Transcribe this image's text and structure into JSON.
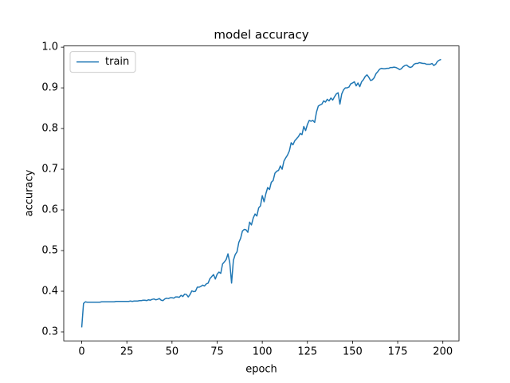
{
  "chart_data": {
    "type": "line",
    "title": "model accuracy",
    "x_label": "epoch",
    "y_label": "accuracy",
    "x": [
      0,
      1,
      2,
      3,
      4,
      5,
      6,
      7,
      8,
      9,
      10,
      11,
      12,
      13,
      14,
      15,
      16,
      17,
      18,
      19,
      20,
      21,
      22,
      23,
      24,
      25,
      26,
      27,
      28,
      29,
      30,
      31,
      32,
      33,
      34,
      35,
      36,
      37,
      38,
      39,
      40,
      41,
      42,
      43,
      44,
      45,
      46,
      47,
      48,
      49,
      50,
      51,
      52,
      53,
      54,
      55,
      56,
      57,
      58,
      59,
      60,
      61,
      62,
      63,
      64,
      65,
      66,
      67,
      68,
      69,
      70,
      71,
      72,
      73,
      74,
      75,
      76,
      77,
      78,
      79,
      80,
      81,
      82,
      83,
      84,
      85,
      86,
      87,
      88,
      89,
      90,
      91,
      92,
      93,
      94,
      95,
      96,
      97,
      98,
      99,
      100,
      101,
      102,
      103,
      104,
      105,
      106,
      107,
      108,
      109,
      110,
      111,
      112,
      113,
      114,
      115,
      116,
      117,
      118,
      119,
      120,
      121,
      122,
      123,
      124,
      125,
      126,
      127,
      128,
      129,
      130,
      131,
      132,
      133,
      134,
      135,
      136,
      137,
      138,
      139,
      140,
      141,
      142,
      143,
      144,
      145,
      146,
      147,
      148,
      149,
      150,
      151,
      152,
      153,
      154,
      155,
      156,
      157,
      158,
      159,
      160,
      161,
      162,
      163,
      164,
      165,
      166,
      167,
      168,
      169,
      170,
      171,
      172,
      173,
      174,
      175,
      176,
      177,
      178,
      179,
      180,
      181,
      182,
      183,
      184,
      185,
      186,
      187,
      188,
      189,
      190,
      191,
      192,
      193,
      194,
      195,
      196,
      197,
      198,
      199
    ],
    "series": [
      {
        "name": "train",
        "color": "#1f77b4",
        "values": [
          0.311,
          0.37,
          0.374,
          0.373,
          0.373,
          0.373,
          0.373,
          0.373,
          0.373,
          0.373,
          0.373,
          0.374,
          0.374,
          0.374,
          0.374,
          0.374,
          0.374,
          0.374,
          0.374,
          0.375,
          0.375,
          0.375,
          0.375,
          0.375,
          0.375,
          0.375,
          0.375,
          0.376,
          0.375,
          0.376,
          0.376,
          0.376,
          0.377,
          0.377,
          0.378,
          0.378,
          0.377,
          0.379,
          0.378,
          0.38,
          0.381,
          0.379,
          0.38,
          0.382,
          0.378,
          0.377,
          0.381,
          0.383,
          0.382,
          0.384,
          0.384,
          0.383,
          0.386,
          0.386,
          0.385,
          0.39,
          0.387,
          0.393,
          0.392,
          0.386,
          0.392,
          0.401,
          0.399,
          0.4,
          0.41,
          0.41,
          0.412,
          0.415,
          0.413,
          0.418,
          0.42,
          0.431,
          0.436,
          0.441,
          0.43,
          0.442,
          0.447,
          0.444,
          0.467,
          0.472,
          0.478,
          0.492,
          0.47,
          0.42,
          0.476,
          0.49,
          0.497,
          0.52,
          0.53,
          0.548,
          0.552,
          0.551,
          0.545,
          0.57,
          0.563,
          0.58,
          0.59,
          0.585,
          0.605,
          0.61,
          0.635,
          0.62,
          0.64,
          0.655,
          0.65,
          0.668,
          0.672,
          0.69,
          0.695,
          0.697,
          0.708,
          0.7,
          0.72,
          0.728,
          0.735,
          0.745,
          0.765,
          0.76,
          0.77,
          0.775,
          0.78,
          0.788,
          0.785,
          0.805,
          0.795,
          0.81,
          0.82,
          0.818,
          0.82,
          0.815,
          0.84,
          0.855,
          0.858,
          0.86,
          0.868,
          0.865,
          0.872,
          0.868,
          0.875,
          0.87,
          0.878,
          0.885,
          0.888,
          0.86,
          0.885,
          0.895,
          0.9,
          0.9,
          0.902,
          0.91,
          0.912,
          0.915,
          0.905,
          0.912,
          0.903,
          0.915,
          0.92,
          0.928,
          0.932,
          0.926,
          0.918,
          0.92,
          0.925,
          0.935,
          0.94,
          0.946,
          0.948,
          0.947,
          0.947,
          0.948,
          0.948,
          0.95,
          0.95,
          0.951,
          0.95,
          0.948,
          0.945,
          0.947,
          0.952,
          0.955,
          0.956,
          0.952,
          0.95,
          0.952,
          0.958,
          0.96,
          0.96,
          0.962,
          0.961,
          0.96,
          0.96,
          0.958,
          0.958,
          0.958,
          0.96,
          0.955,
          0.958,
          0.965,
          0.968,
          0.97
        ]
      }
    ],
    "xlim": [
      -9.95,
      208.95
    ],
    "ylim": [
      0.278,
      1.003
    ],
    "xticks": [
      0,
      25,
      50,
      75,
      100,
      125,
      150,
      175,
      200
    ],
    "yticks": [
      0.3,
      0.4,
      0.5,
      0.6,
      0.7,
      0.8,
      0.9,
      {
        "value": 1.0,
        "label": "1.0"
      }
    ],
    "grid": false,
    "legend": "upper left"
  }
}
